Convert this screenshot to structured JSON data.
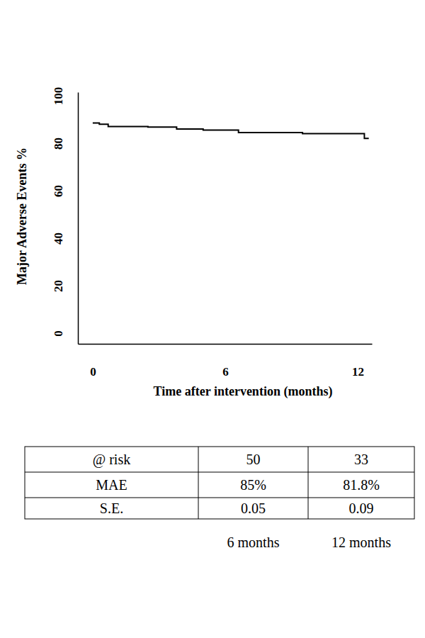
{
  "chart_data": {
    "type": "line",
    "x_label": "Time after intervention (months)",
    "y_label": "Major Adverse Events %",
    "x": [
      0,
      0.3,
      0.7,
      2.5,
      3.8,
      5.0,
      6.6,
      9.5,
      12.3,
      12.5
    ],
    "series": [
      {
        "color": "#000000",
        "line_style": "step",
        "values": [
          88.5,
          88,
          87,
          86.8,
          86,
          85.5,
          84.5,
          84,
          82,
          82
        ]
      }
    ],
    "xlim": [
      -0.67,
      12.64
    ],
    "xticks": [
      0,
      6,
      12
    ],
    "ylim": [
      -4.5,
      101.5
    ],
    "yticks": [
      0,
      20,
      40,
      60,
      80,
      100
    ],
    "grid": false
  },
  "table": {
    "rows": [
      [
        "@ risk",
        "50",
        "33"
      ],
      [
        "MAE",
        "85%",
        "81.8%"
      ],
      [
        "S.E.",
        "0.05",
        "0.09"
      ]
    ],
    "column_labels": [
      "6 months",
      "12 months"
    ]
  }
}
